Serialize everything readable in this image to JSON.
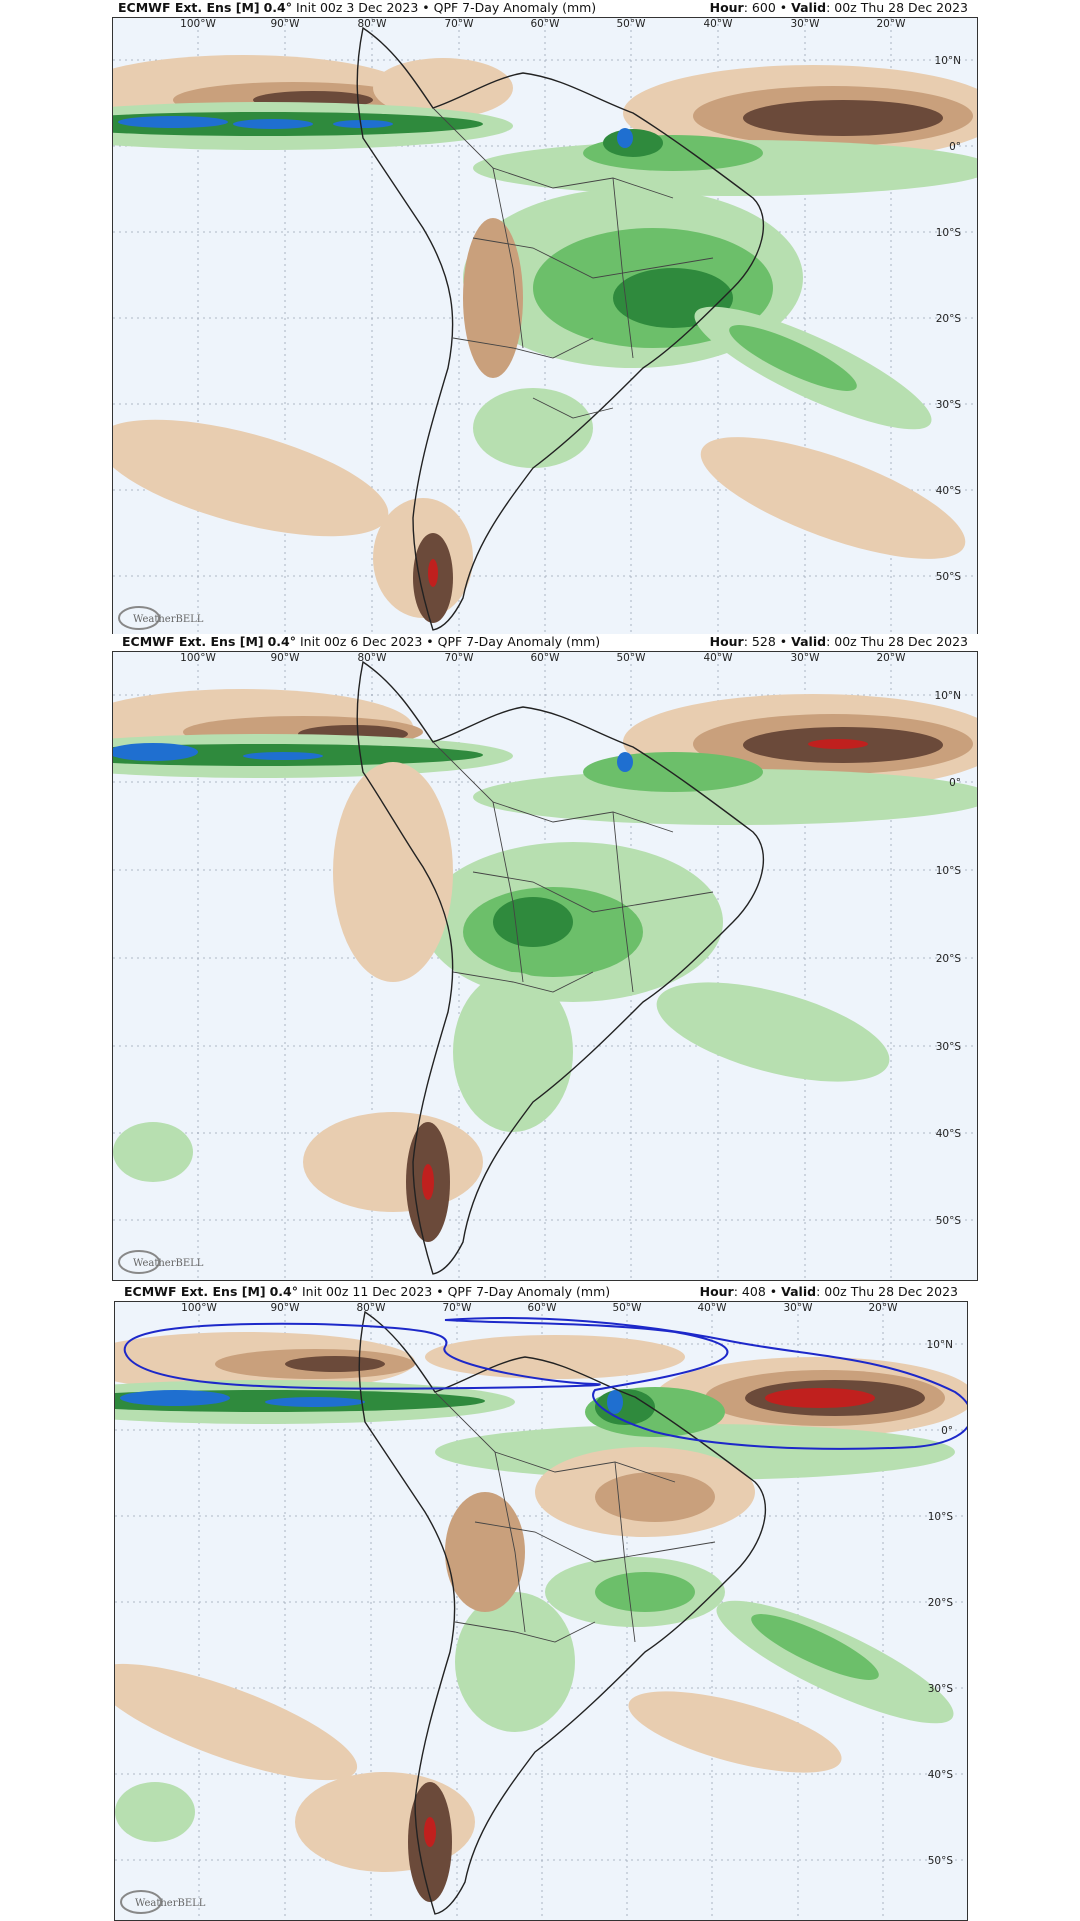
{
  "panels": [
    {
      "title_bold": "ECMWF Ext. Ens [M]",
      "resolution": "0.4°",
      "init": "Init 00z 3 Dec 2023",
      "product": "QPF 7-Day Anomaly (mm)",
      "hour_label": "Hour",
      "hour_value": ": 600 •",
      "valid_label": "Valid",
      "valid_value": ": 00z Thu 28 Dec 2023"
    },
    {
      "title_bold": "ECMWF Ext. Ens [M]",
      "resolution": "0.4°",
      "init": "Init 00z 6 Dec 2023",
      "product": "QPF 7-Day Anomaly (mm)",
      "hour_label": "Hour",
      "hour_value": ": 528 •",
      "valid_label": "Valid",
      "valid_value": ": 00z Thu 28 Dec 2023"
    },
    {
      "title_bold": "ECMWF Ext. Ens [M]",
      "resolution": "0.4°",
      "init": "Init 00z 11 Dec 2023",
      "product": "QPF 7-Day Anomaly (mm)",
      "hour_label": "Hour",
      "hour_value": ": 408 •",
      "valid_label": "Valid",
      "valid_value": ": 00z Thu 28 Dec 2023"
    }
  ],
  "longitude_labels": [
    "100°W",
    "90°W",
    "80°W",
    "70°W",
    "60°W",
    "50°W",
    "40°W",
    "30°W",
    "20°W"
  ],
  "latitude_labels": [
    "10°N",
    "0°",
    "10°S",
    "20°S",
    "30°S",
    "40°S",
    "50°S"
  ],
  "logo_text": "WeatherBELL",
  "colors": {
    "ocean": "#eef4fb",
    "dry_light": "#e8cdb0",
    "dry_mid": "#c9a07c",
    "dry_dark": "#6b4a3a",
    "dry_extreme": "#c0201e",
    "wet_light": "#b7dfb0",
    "wet_mid": "#6cbf6a",
    "wet_dark": "#2f8a3d",
    "wet_extreme": "#1f6fd0",
    "annotation": "#1d28c9"
  }
}
